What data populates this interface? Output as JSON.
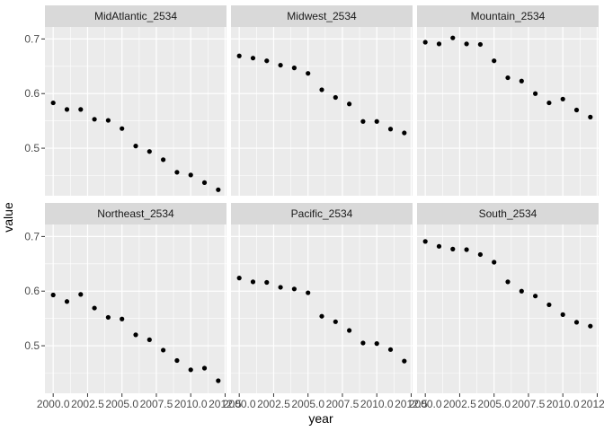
{
  "chart_data": {
    "type": "scatter",
    "facet_layout": {
      "rows": 2,
      "cols": 3
    },
    "xlabel": "year",
    "ylabel": "value",
    "xlim": [
      1999.4,
      2012.6
    ],
    "ylim": [
      0.413,
      0.722
    ],
    "x_ticks": [
      2000.0,
      2002.5,
      2005.0,
      2007.5,
      2010.0,
      2012.5
    ],
    "x_tick_labels": [
      "2000.0",
      "2002.5",
      "2005.0",
      "2007.5",
      "2010.0",
      "2012.5"
    ],
    "y_ticks": [
      0.5,
      0.6,
      0.7
    ],
    "y_tick_labels": [
      "0.5",
      "0.6",
      "0.7"
    ],
    "grid": true,
    "colors": {
      "panel_bg": "#ebebeb",
      "strip_bg": "#d9d9d9",
      "grid_major": "#ffffff",
      "point": "#000000"
    },
    "x": [
      2000,
      2001,
      2002,
      2003,
      2004,
      2005,
      2006,
      2007,
      2008,
      2009,
      2010,
      2011,
      2012
    ],
    "panels": [
      {
        "name": "MidAtlantic_2534",
        "values": [
          0.583,
          0.571,
          0.571,
          0.553,
          0.551,
          0.536,
          0.504,
          0.494,
          0.479,
          0.456,
          0.451,
          0.437,
          0.424
        ]
      },
      {
        "name": "Midwest_2534",
        "values": [
          0.669,
          0.665,
          0.66,
          0.652,
          0.647,
          0.637,
          0.607,
          0.593,
          0.581,
          0.549,
          0.549,
          0.535,
          0.528
        ]
      },
      {
        "name": "Mountain_2534",
        "values": [
          0.694,
          0.691,
          0.702,
          0.691,
          0.69,
          0.66,
          0.629,
          0.623,
          0.6,
          0.583,
          0.59,
          0.57,
          0.557
        ]
      },
      {
        "name": "Northeast_2534",
        "values": [
          0.593,
          0.581,
          0.594,
          0.569,
          0.552,
          0.549,
          0.52,
          0.511,
          0.492,
          0.473,
          0.456,
          0.459,
          0.436
        ]
      },
      {
        "name": "Pacific_2534",
        "values": [
          0.624,
          0.617,
          0.616,
          0.607,
          0.604,
          0.597,
          0.554,
          0.544,
          0.528,
          0.505,
          0.504,
          0.493,
          0.472
        ]
      },
      {
        "name": "South_2534",
        "values": [
          0.691,
          0.682,
          0.677,
          0.676,
          0.667,
          0.653,
          0.617,
          0.6,
          0.591,
          0.575,
          0.557,
          0.543,
          0.536
        ]
      }
    ]
  }
}
